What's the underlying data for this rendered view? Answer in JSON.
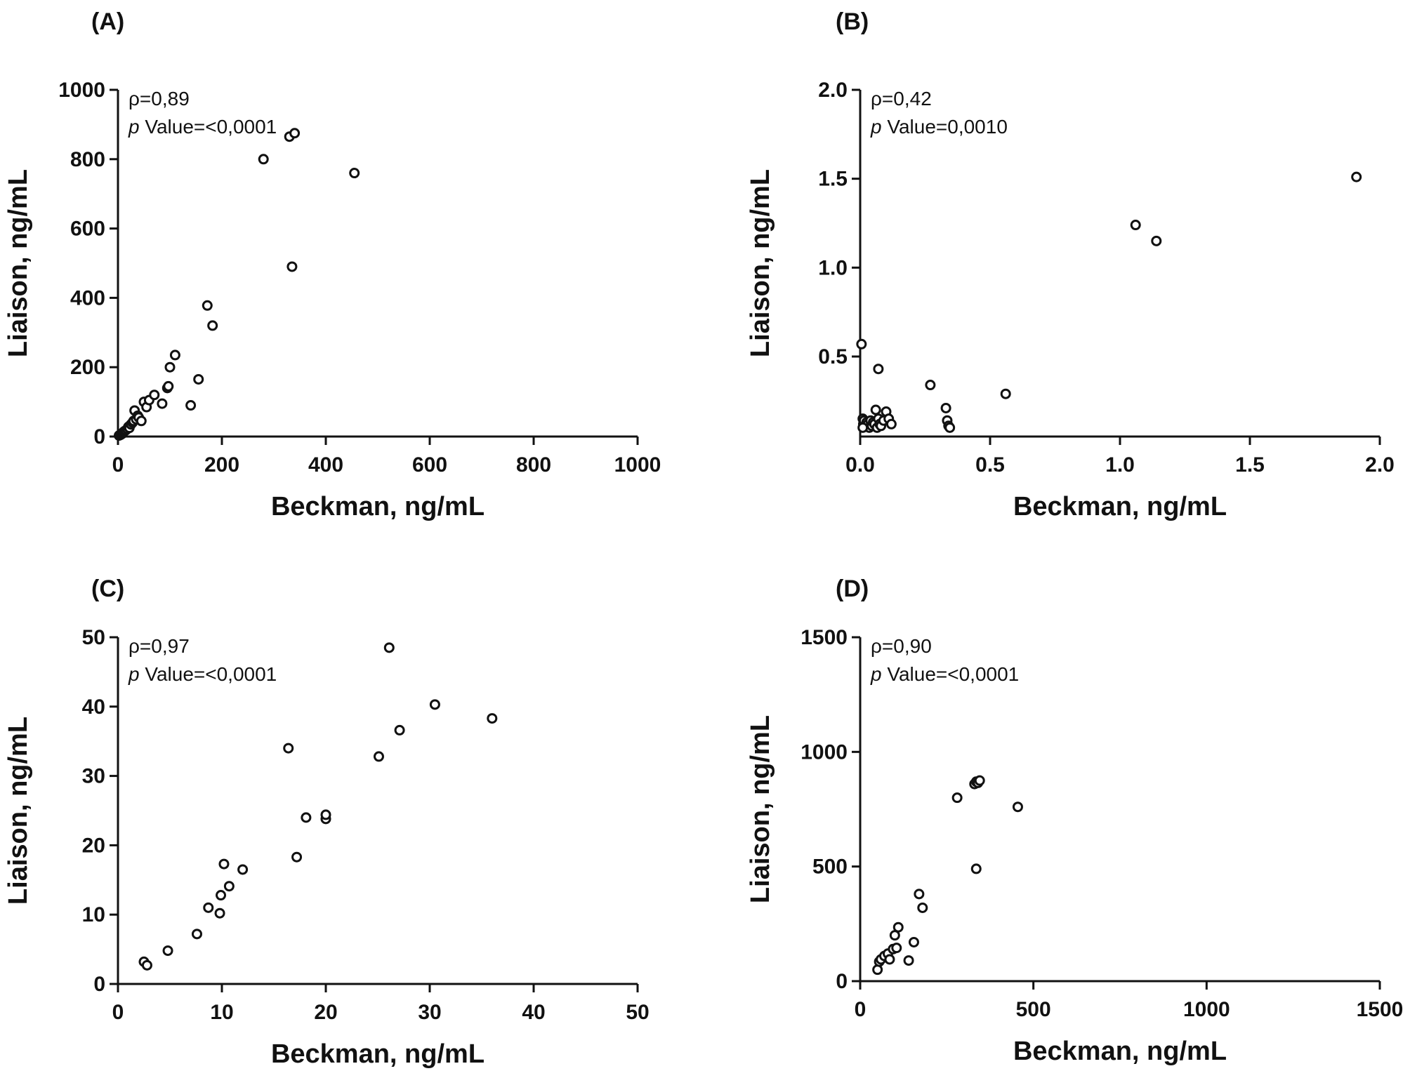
{
  "chart_data": [
    {
      "type": "scatter",
      "panel": "(A)",
      "title": "",
      "xlabel": "Beckman, ng/mL",
      "ylabel": "Liaison, ng/mL",
      "xlim": [
        0,
        1000
      ],
      "ylim": [
        0,
        1000
      ],
      "xticks": [
        0,
        200,
        400,
        600,
        800,
        1000
      ],
      "yticks": [
        0,
        200,
        400,
        600,
        800,
        1000
      ],
      "xtick_labels": [
        "0",
        "200",
        "400",
        "600",
        "800",
        "1000"
      ],
      "ytick_labels": [
        "0",
        "200",
        "400",
        "600",
        "800",
        "1000"
      ],
      "rho_text": "ρ=0,89",
      "p_prefix": "p",
      "p_text": " Value=<0,0001",
      "x": [
        2,
        5,
        8,
        10,
        12,
        15,
        18,
        20,
        22,
        25,
        28,
        30,
        32,
        35,
        38,
        40,
        45,
        50,
        55,
        60,
        70,
        85,
        95,
        97,
        100,
        110,
        140,
        155,
        172,
        182,
        280,
        330,
        340,
        335,
        455
      ],
      "y": [
        3,
        5,
        8,
        12,
        15,
        18,
        22,
        28,
        25,
        35,
        40,
        45,
        75,
        50,
        60,
        55,
        45,
        100,
        85,
        105,
        120,
        95,
        140,
        145,
        200,
        235,
        90,
        165,
        378,
        320,
        800,
        865,
        875,
        490,
        760
      ]
    },
    {
      "type": "scatter",
      "panel": "(B)",
      "title": "",
      "xlabel": "Beckman, ng/mL",
      "ylabel": "Liaison, ng/mL",
      "xlim": [
        0,
        2.0
      ],
      "ylim": [
        0.05,
        2.0
      ],
      "xticks": [
        0,
        0.5,
        1.0,
        1.5,
        2.0
      ],
      "yticks": [
        0.5,
        1.0,
        1.5,
        2.0
      ],
      "xtick_labels": [
        "0.0",
        "0.5",
        "1.0",
        "1.5",
        "2.0"
      ],
      "ytick_labels": [
        "0.5",
        "1.0",
        "1.5",
        "2.0"
      ],
      "rho_text": "ρ=0,42",
      "p_prefix": "p",
      "p_text": " Value=0,0010",
      "x": [
        0.005,
        0.01,
        0.012,
        0.015,
        0.02,
        0.025,
        0.03,
        0.035,
        0.04,
        0.045,
        0.05,
        0.055,
        0.06,
        0.065,
        0.07,
        0.075,
        0.08,
        0.09,
        0.1,
        0.11,
        0.12,
        0.01,
        0.07,
        0.27,
        0.33,
        0.335,
        0.34,
        0.345,
        0.56,
        1.06,
        1.14,
        1.91
      ],
      "y": [
        0.57,
        0.15,
        0.12,
        0.14,
        0.11,
        0.13,
        0.12,
        0.1,
        0.14,
        0.11,
        0.13,
        0.12,
        0.2,
        0.1,
        0.15,
        0.12,
        0.11,
        0.14,
        0.19,
        0.15,
        0.12,
        0.1,
        0.43,
        0.34,
        0.21,
        0.14,
        0.11,
        0.1,
        0.29,
        1.24,
        1.15,
        1.51
      ]
    },
    {
      "type": "scatter",
      "panel": "(C)",
      "title": "",
      "xlabel": "Beckman, ng/mL",
      "ylabel": "Liaison, ng/mL",
      "xlim": [
        0,
        50
      ],
      "ylim": [
        0,
        50
      ],
      "xticks": [
        0,
        10,
        20,
        30,
        40,
        50
      ],
      "yticks": [
        0,
        10,
        20,
        30,
        40,
        50
      ],
      "xtick_labels": [
        "0",
        "10",
        "20",
        "30",
        "40",
        "50"
      ],
      "ytick_labels": [
        "0",
        "10",
        "20",
        "30",
        "40",
        "50"
      ],
      "rho_text": "ρ=0,97",
      "p_prefix": "p",
      "p_text": " Value=<0,0001",
      "x": [
        2.5,
        2.8,
        4.8,
        7.6,
        8.7,
        9.8,
        9.9,
        10.2,
        10.7,
        12.0,
        16.4,
        17.2,
        18.1,
        20.0,
        20.0,
        25.1,
        26.1,
        27.1,
        30.5,
        36.0
      ],
      "y": [
        3.2,
        2.7,
        4.8,
        7.2,
        11.0,
        10.2,
        12.8,
        17.3,
        14.1,
        16.5,
        34.0,
        18.3,
        24.0,
        23.8,
        24.4,
        32.8,
        48.5,
        36.6,
        40.3,
        38.3
      ]
    },
    {
      "type": "scatter",
      "panel": "(D)",
      "title": "",
      "xlabel": "Beckman, ng/mL",
      "ylabel": "Liaison, ng/mL",
      "xlim": [
        0,
        1500
      ],
      "ylim": [
        0,
        1500
      ],
      "xticks": [
        0,
        500,
        1000,
        1500
      ],
      "yticks": [
        0,
        500,
        1000,
        1500
      ],
      "xtick_labels": [
        "0",
        "500",
        "1000",
        "1500"
      ],
      "ytick_labels": [
        "0",
        "500",
        "1000",
        "1500"
      ],
      "rho_text": "ρ=0,90",
      "p_prefix": "p",
      "p_text": " Value=<0,0001",
      "x": [
        50,
        55,
        60,
        70,
        80,
        85,
        95,
        100,
        105,
        110,
        140,
        155,
        170,
        180,
        280,
        330,
        335,
        340,
        345,
        335,
        455
      ],
      "y": [
        50,
        85,
        95,
        110,
        120,
        95,
        140,
        200,
        145,
        235,
        90,
        170,
        380,
        320,
        800,
        860,
        870,
        865,
        875,
        490,
        760
      ]
    }
  ]
}
